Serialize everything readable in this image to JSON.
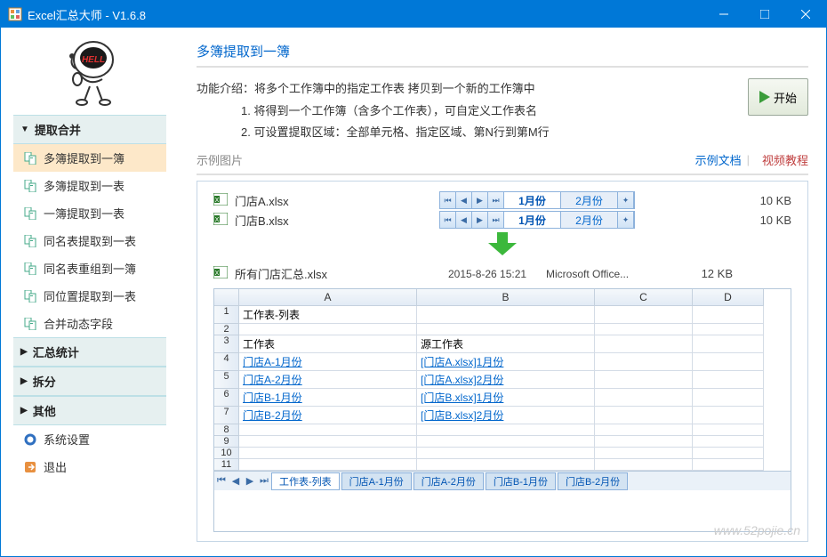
{
  "window": {
    "title": "Excel汇总大师 - V1.6.8"
  },
  "sidebar": {
    "groups": [
      {
        "label": "提取合并",
        "expanded": true,
        "items": [
          {
            "label": "多簿提取到一簿",
            "active": true
          },
          {
            "label": "多簿提取到一表"
          },
          {
            "label": "一簿提取到一表"
          },
          {
            "label": "同名表提取到一表"
          },
          {
            "label": "同名表重组到一簿"
          },
          {
            "label": "同位置提取到一表"
          },
          {
            "label": "合并动态字段"
          }
        ]
      },
      {
        "label": "汇总统计",
        "expanded": false
      },
      {
        "label": "拆分",
        "expanded": false
      },
      {
        "label": "其他",
        "expanded": false
      }
    ],
    "footer": [
      {
        "label": "系统设置",
        "icon": "gear"
      },
      {
        "label": "退出",
        "icon": "exit"
      }
    ]
  },
  "main": {
    "section_title": "多簿提取到一簿",
    "intro": {
      "line0": "功能介绍：将多个工作簿中的指定工作表 拷贝到一个新的工作簿中",
      "line1": "1. 将得到一个工作簿（含多个工作表），可自定义工作表名",
      "line2": "2. 可设置提取区域：全部单元格、指定区域、第N行到第M行"
    },
    "start_btn": "开始",
    "example": {
      "label": "示例图片",
      "link1": "示例文档",
      "link2": "视频教程"
    },
    "files": [
      {
        "name": "门店A.xlsx",
        "tab1": "1月份",
        "tab2": "2月份",
        "size": "10 KB"
      },
      {
        "name": "门店B.xlsx",
        "tab1": "1月份",
        "tab2": "2月份",
        "size": "10 KB"
      }
    ],
    "result": {
      "name": "所有门店汇总.xlsx",
      "date": "2015-8-26 15:21",
      "app": "Microsoft Office...",
      "size": "12 KB"
    },
    "sheet": {
      "cols": [
        "",
        "A",
        "B",
        "C",
        "D"
      ],
      "rows": [
        [
          "1",
          "工作表-列表",
          "",
          "",
          ""
        ],
        [
          "2",
          "",
          "",
          "",
          ""
        ],
        [
          "3",
          "工作表",
          "源工作表",
          "",
          ""
        ],
        [
          "4",
          "门店A-1月份",
          "[门店A.xlsx]1月份",
          "",
          ""
        ],
        [
          "5",
          "门店A-2月份",
          "[门店A.xlsx]2月份",
          "",
          ""
        ],
        [
          "6",
          "门店B-1月份",
          "[门店B.xlsx]1月份",
          "",
          ""
        ],
        [
          "7",
          "门店B-2月份",
          "[门店B.xlsx]2月份",
          "",
          ""
        ],
        [
          "8",
          "",
          "",
          "",
          ""
        ],
        [
          "9",
          "",
          "",
          "",
          ""
        ],
        [
          "10",
          "",
          "",
          "",
          ""
        ],
        [
          "11",
          "",
          "",
          "",
          ""
        ]
      ],
      "link_rows": [
        3,
        4,
        5,
        6
      ],
      "tabs": [
        "工作表-列表",
        "门店A-1月份",
        "门店A-2月份",
        "门店B-1月份",
        "门店B-2月份"
      ]
    },
    "watermark": "www.52pojie.cn"
  },
  "colors": {
    "accent": "#0078d7",
    "link": "#0066cc",
    "sidebar_active": "#fde8c9"
  }
}
